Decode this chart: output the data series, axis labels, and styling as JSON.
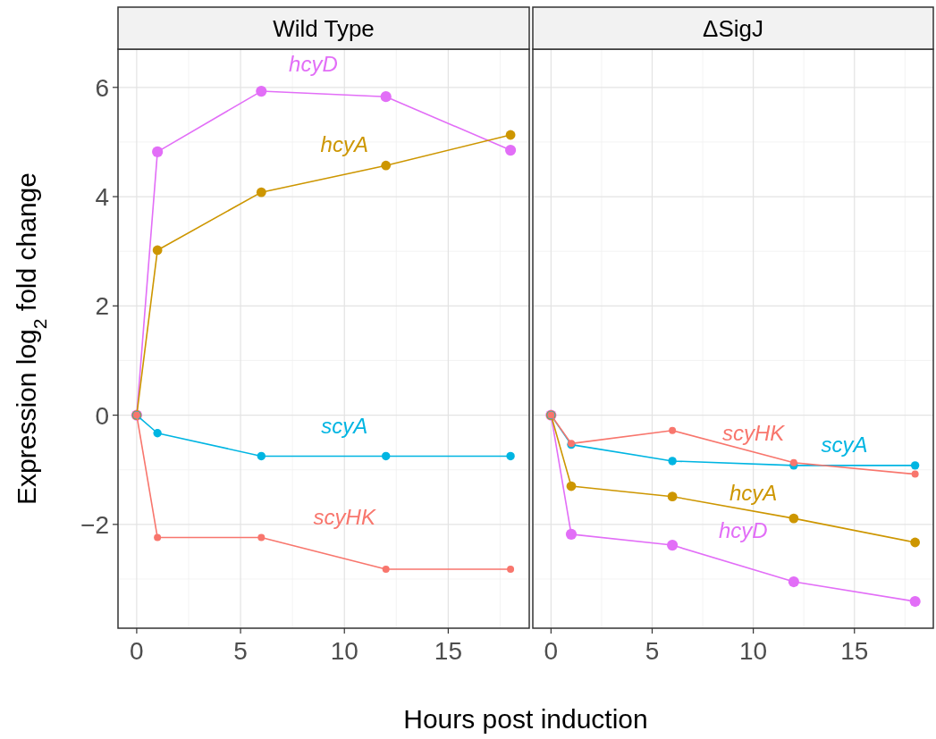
{
  "chart_data": [
    {
      "type": "line",
      "title": "Wild Type",
      "ylabel": "Expression log$_{2}$ fold change",
      "xlabel": "Hours post induction",
      "x": [
        0,
        1,
        6,
        12,
        18
      ],
      "xlim": [
        -0.9,
        18.9
      ],
      "xticks": [
        0,
        5,
        10,
        15
      ],
      "ylim": [
        -3.9,
        6.7
      ],
      "yticks": [
        {
          "value": -2,
          "label": "−2"
        },
        0,
        2,
        4,
        6
      ],
      "grid": true,
      "marker": "circle",
      "line_style": "solid",
      "series": [
        {
          "name": "hcyD",
          "color": "#e26ef7",
          "values": [
            0,
            4.82,
            5.93,
            5.83,
            4.85
          ]
        },
        {
          "name": "hcyA",
          "color": "#cd9600",
          "values": [
            0,
            3.02,
            4.08,
            4.57,
            5.13
          ]
        },
        {
          "name": "scyA",
          "color": "#00b5e2",
          "values": [
            0,
            -0.33,
            -0.75,
            -0.75,
            -0.75
          ]
        },
        {
          "name": "scyHK",
          "color": "#f8766d",
          "values": [
            0,
            -2.24,
            -2.24,
            -2.82,
            -2.82
          ]
        }
      ]
    },
    {
      "type": "line",
      "title": "ΔSigJ",
      "x": [
        0,
        1,
        6,
        12,
        18
      ],
      "xlim": [
        -0.9,
        18.9
      ],
      "xticks": [
        0,
        5,
        10,
        15
      ],
      "ylim": [
        -3.9,
        6.7
      ],
      "yticks": [
        -2,
        0,
        2,
        4,
        6
      ],
      "grid": true,
      "marker": "circle",
      "line_style": "solid",
      "tick_labels": "x",
      "series": [
        {
          "name": "hcyD",
          "color": "#e26ef7",
          "values": [
            0,
            -2.18,
            -2.38,
            -3.05,
            -3.41
          ]
        },
        {
          "name": "hcyA",
          "color": "#cd9600",
          "values": [
            0,
            -1.3,
            -1.49,
            -1.89,
            -2.33
          ]
        },
        {
          "name": "scyA",
          "color": "#00b5e2",
          "values": [
            0,
            -0.54,
            -0.84,
            -0.92,
            -0.92
          ]
        },
        {
          "name": "scyHK",
          "color": "#f8766d",
          "values": [
            0,
            -0.52,
            -0.28,
            -0.87,
            -1.08
          ]
        }
      ]
    }
  ]
}
